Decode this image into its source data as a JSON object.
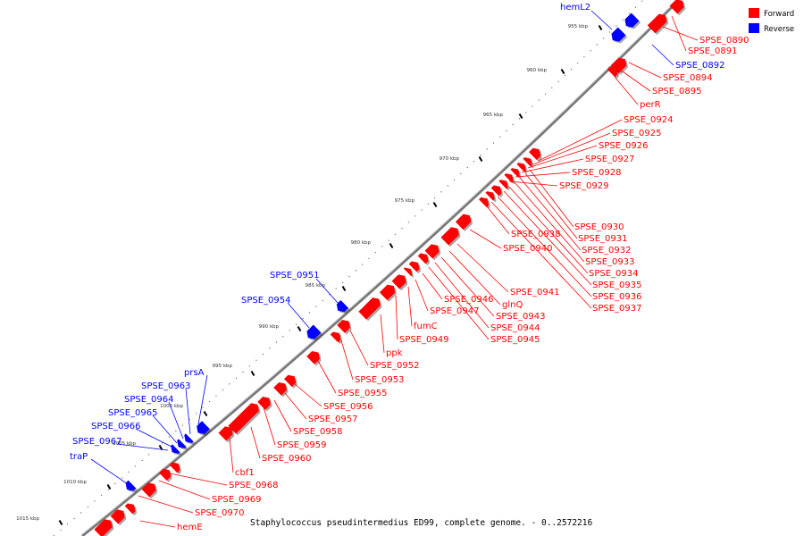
{
  "caption": "Staphylococcus pseudintermedius ED99, complete genome. - 0..2572216",
  "legend": [
    {
      "label": "Forward",
      "color": "#ff0000"
    },
    {
      "label": "Reverse",
      "color": "#0000ff"
    }
  ],
  "colors": {
    "forward": "#ff0000",
    "reverse": "#0000ff",
    "backbone": "#777777"
  },
  "ticks": [
    {
      "label": "955 kbp"
    },
    {
      "label": "960 kbp"
    },
    {
      "label": "965 kbp"
    },
    {
      "label": "970 kbp"
    },
    {
      "label": "975 kbp"
    },
    {
      "label": "980 kbp"
    },
    {
      "label": "985 kbp"
    },
    {
      "label": "990 kbp"
    },
    {
      "label": "995 kbp"
    },
    {
      "label": "1000 kbp"
    },
    {
      "label": "1005 kbp"
    },
    {
      "label": "1010 kbp"
    },
    {
      "label": "1015 kbp"
    }
  ],
  "forward_labels": [
    "SPSE_0890",
    "SPSE_0891",
    "SPSE_0894",
    "SPSE_0895",
    "perR",
    "SPSE_0924",
    "SPSE_0925",
    "SPSE_0926",
    "SPSE_0927",
    "SPSE_0928",
    "SPSE_0929",
    "SPSE_0930",
    "SPSE_0931",
    "SPSE_0932",
    "SPSE_0933",
    "SPSE_0934",
    "SPSE_0935",
    "SPSE_0936",
    "SPSE_0937",
    "SPSE_0938",
    "SPSE_0940",
    "SPSE_0941",
    "glnQ",
    "SPSE_0943",
    "SPSE_0944",
    "SPSE_0945",
    "SPSE_0946",
    "SPSE_0947",
    "fumC",
    "SPSE_0949",
    "ppk",
    "SPSE_0952",
    "SPSE_0953",
    "SPSE_0955",
    "SPSE_0956",
    "SPSE_0957",
    "SPSE_0958",
    "SPSE_0959",
    "SPSE_0960",
    "cbf1",
    "SPSE_0968",
    "SPSE_0969",
    "SPSE_0970",
    "hemE"
  ],
  "reverse_labels": [
    "hemL2",
    "SPSE_0892",
    "SPSE_0951",
    "SPSE_0954",
    "prsA",
    "SPSE_0963",
    "SPSE_0964",
    "SPSE_0965",
    "SPSE_0966",
    "SPSE_0967",
    "traP"
  ]
}
